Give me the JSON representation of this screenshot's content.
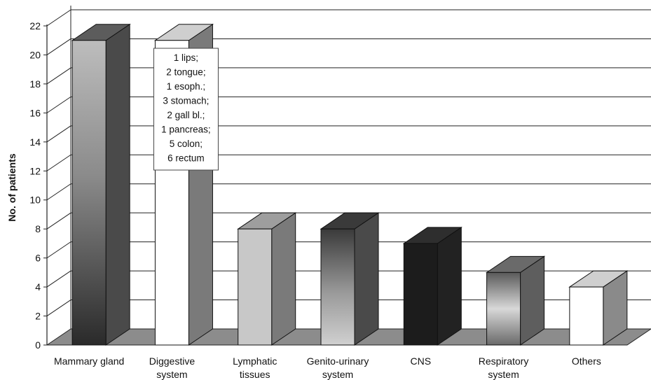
{
  "chart_data": {
    "type": "bar",
    "ylabel": "No. of patients",
    "ylim": [
      0,
      22
    ],
    "yticks": [
      0,
      2,
      4,
      6,
      8,
      10,
      12,
      14,
      16,
      18,
      20,
      22
    ],
    "categories": [
      [
        "Mammary gland"
      ],
      [
        "Diggestive",
        "system"
      ],
      [
        "Lymphatic",
        "tissues"
      ],
      [
        "Genito-urinary",
        "system"
      ],
      [
        "CNS"
      ],
      [
        "Respiratory",
        "system"
      ],
      [
        "Others"
      ]
    ],
    "values": [
      21,
      21,
      8,
      8,
      7,
      5,
      4
    ],
    "annotation": {
      "category_index": 1,
      "lines": [
        "1 lips;",
        "2 tongue;",
        "1 esoph.;",
        "3 stomach;",
        "2 gall bl.;",
        "1 pancreas;",
        "5 colon;",
        "6 rectum"
      ]
    },
    "grid": true,
    "style": "3d"
  }
}
